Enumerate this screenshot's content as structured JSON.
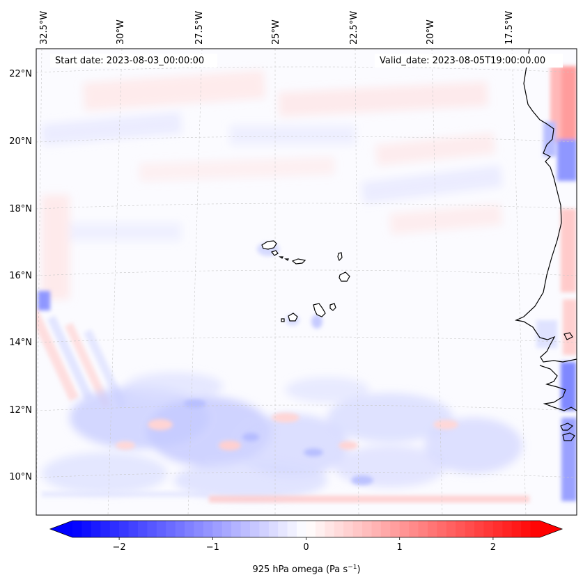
{
  "map": {
    "start_date_label": "Start date: 2023-08-03_00:00:00",
    "valid_date_label": "Valid_date: 2023-08-05T19:00:00.00",
    "lon_labels": [
      "32.5°W",
      "30°W",
      "27.5°W",
      "25°W",
      "22.5°W",
      "20°W",
      "17.5°W"
    ],
    "lat_labels": [
      "22°N",
      "20°N",
      "18°N",
      "16°N",
      "14°N",
      "12°N",
      "10°N"
    ],
    "variable": "925 hPa omega",
    "units": "Pa s",
    "units_exponent": "−1"
  },
  "colorbar": {
    "ticks": [
      "−2",
      "−1",
      "0",
      "1",
      "2"
    ],
    "tick_values": [
      -2,
      -1,
      0,
      1,
      2
    ],
    "range": [
      -2.5,
      2.5
    ],
    "colormap": "bwr",
    "low_color": "#0000ff",
    "mid_color": "#ffffff",
    "high_color": "#ff0000"
  },
  "colors": {
    "coastline": "#000000",
    "gridline": "#c8c8c8",
    "background": "#fbfbff"
  }
}
